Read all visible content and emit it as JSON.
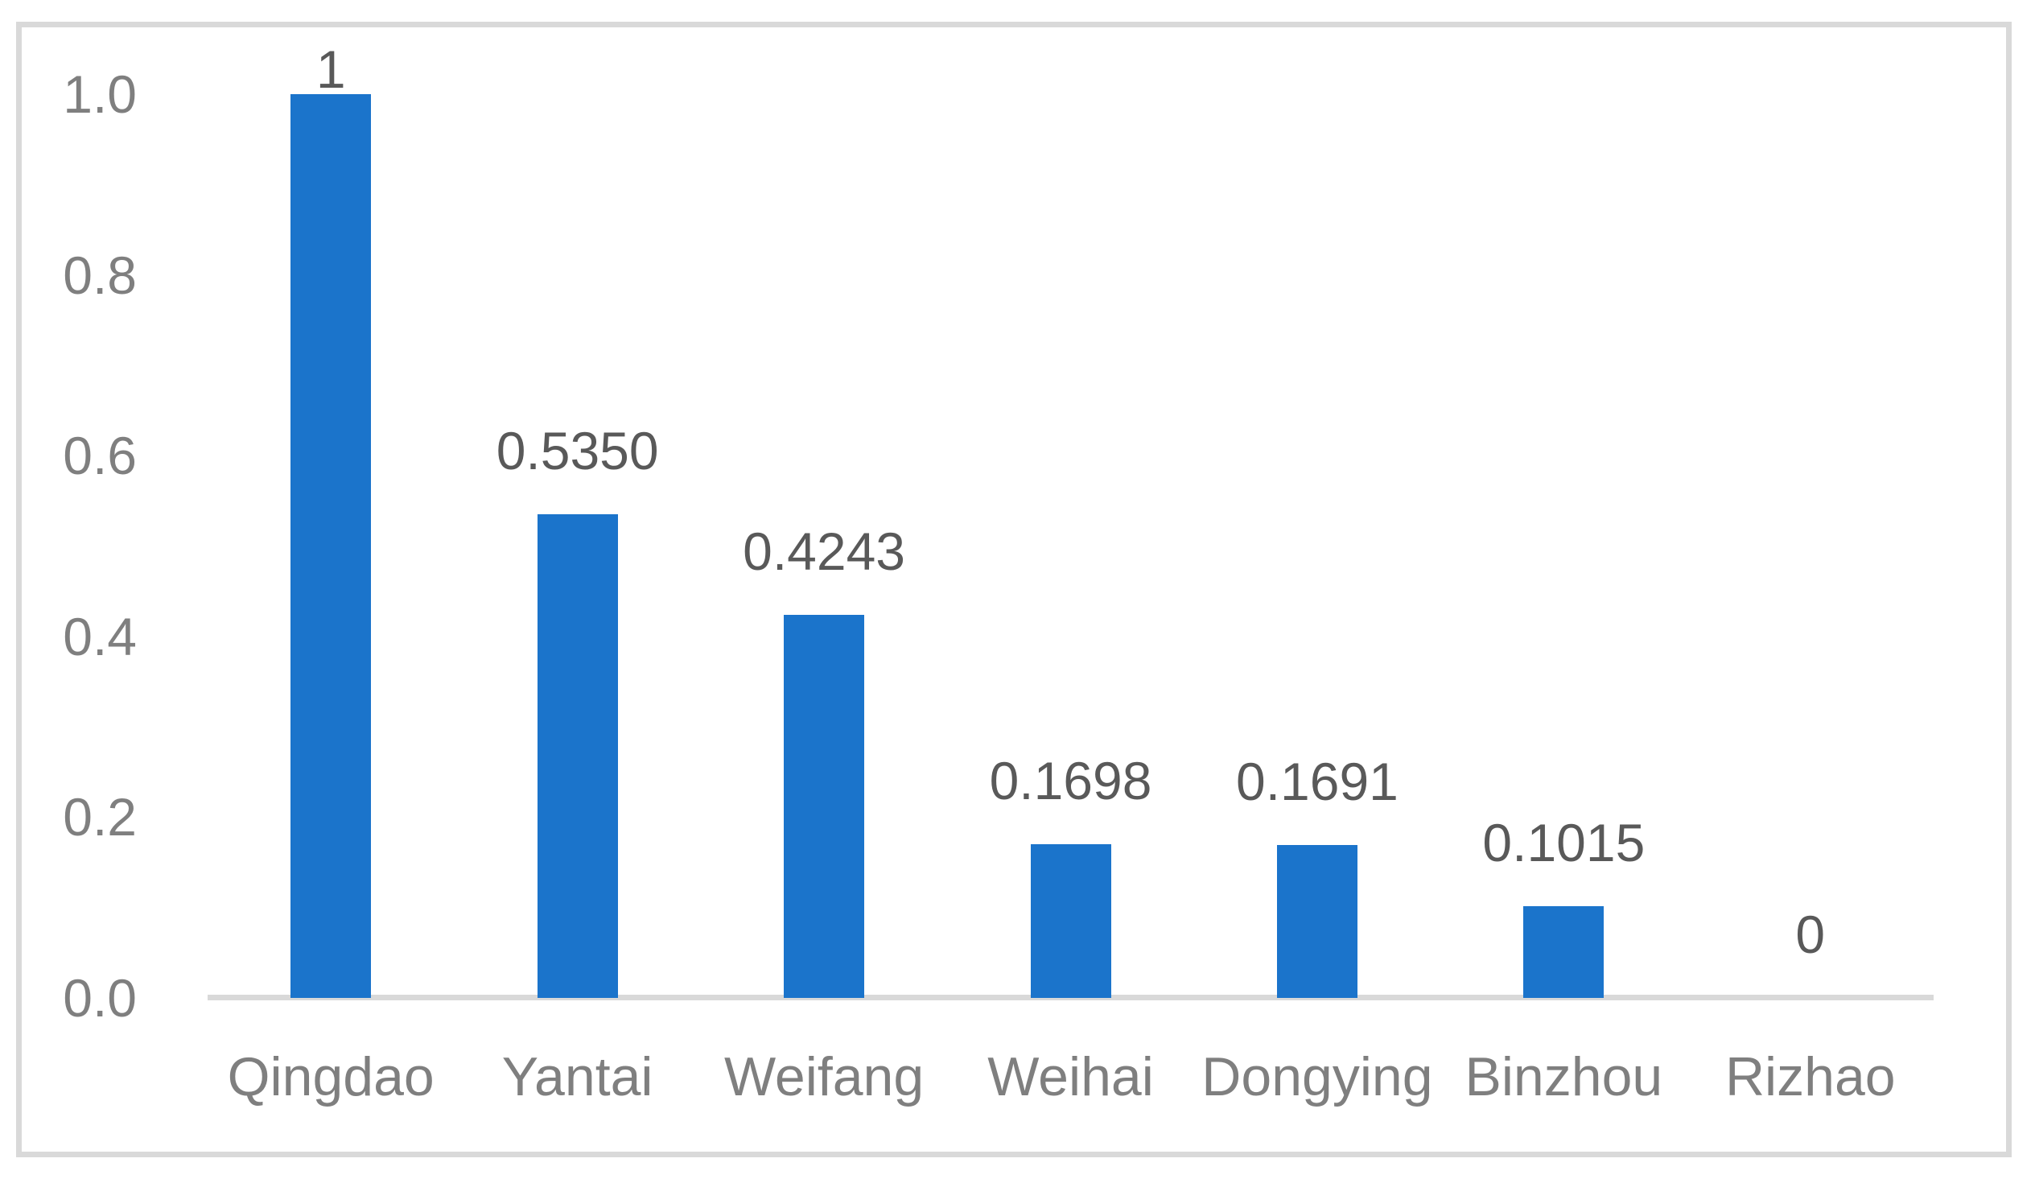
{
  "chart_data": {
    "type": "bar",
    "categories": [
      "Qingdao",
      "Yantai",
      "Weifang",
      "Weihai",
      "Dongying",
      "Binzhou",
      "Rizhao"
    ],
    "values": [
      1,
      0.535,
      0.4243,
      0.1698,
      0.1691,
      0.1015,
      0
    ],
    "value_labels": [
      "1",
      "0.5350",
      "0.4243",
      "0.1698",
      "0.1691",
      "0.1015",
      "0"
    ],
    "y_ticks": [
      "1.0",
      "0.8",
      "0.6",
      "0.4",
      "0.2",
      "0.0"
    ],
    "y_tick_values": [
      1.0,
      0.8,
      0.6,
      0.4,
      0.2,
      0.0
    ],
    "title": "",
    "xlabel": "",
    "ylabel": "",
    "ylim": [
      0,
      1.0
    ],
    "grid": false,
    "legend": null,
    "bar_color": "#1B74CB",
    "frame_color": "#D9D9D9",
    "axis_line_color": "#D9D9D9",
    "tick_label_color": "#7F7F7F",
    "category_label_color": "#7F7F7F",
    "data_label_color": "#595959"
  }
}
